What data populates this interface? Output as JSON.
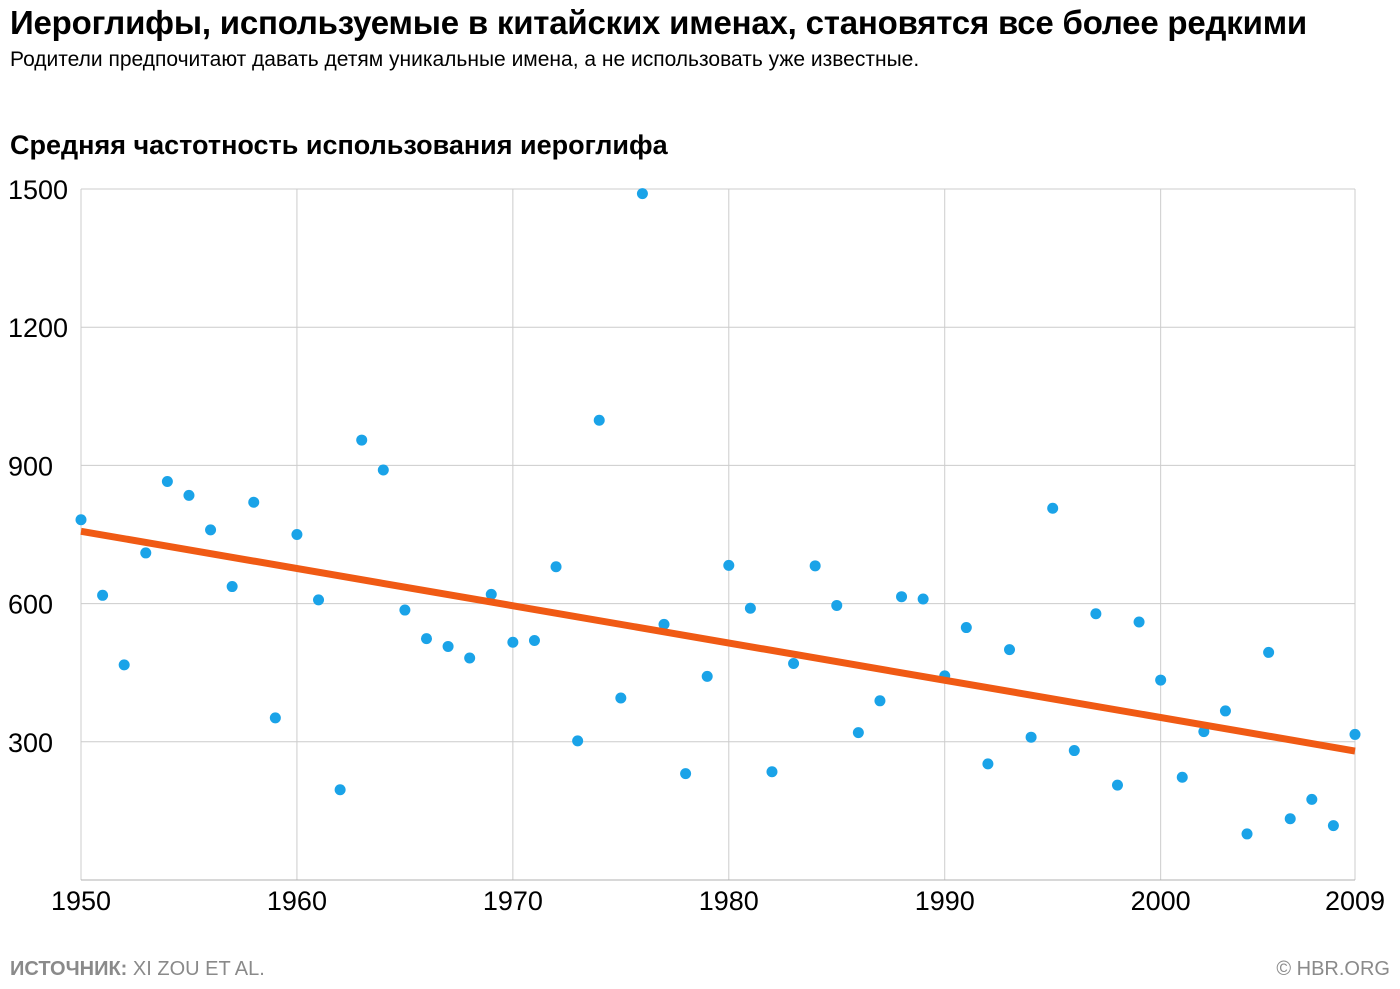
{
  "title": "Иероглифы, используемые в китайских именах, становятся все более редкими",
  "subtitle": "Родители предпочитают давать детям уникальные имена, а не использовать уже известные.",
  "footer": {
    "source_label": "ИСТОЧНИК:",
    "source_text": " XI ZOU ET AL.",
    "copyright": "© HBR.ORG"
  },
  "colors": {
    "points": "#1aa3e8",
    "trend": "#f05a14",
    "grid": "#cccccc"
  },
  "chart_data": {
    "type": "scatter",
    "title": "Средняя частотность использования иероглифа",
    "xlabel": "",
    "ylabel": "",
    "xlim": [
      1950,
      2009
    ],
    "ylim": [
      0,
      1500
    ],
    "x_ticks": [
      1950,
      1960,
      1970,
      1980,
      1990,
      2000,
      2009
    ],
    "y_ticks": [
      300,
      600,
      900,
      1200,
      1500
    ],
    "grid": true,
    "series": [
      {
        "x": [
          1950,
          1951,
          1952,
          1953,
          1954,
          1955,
          1956,
          1957,
          1958,
          1959,
          1960,
          1961,
          1962,
          1963,
          1964,
          1965,
          1966,
          1967,
          1968,
          1969,
          1970,
          1971,
          1972,
          1973,
          1974,
          1975,
          1976,
          1977,
          1978,
          1979,
          1980,
          1981,
          1982,
          1983,
          1984,
          1985,
          1986,
          1987,
          1988,
          1989,
          1990,
          1991,
          1992,
          1993,
          1994,
          1995,
          1996,
          1997,
          1998,
          1999,
          2000,
          2001,
          2002,
          2003,
          2004,
          2005,
          2006,
          2007,
          2008,
          2009
        ],
        "y": [
          782,
          618,
          467,
          710,
          865,
          835,
          760,
          637,
          820,
          352,
          750,
          608,
          196,
          955,
          890,
          586,
          524,
          507,
          482,
          620,
          516,
          520,
          680,
          302,
          998,
          395,
          1490,
          555,
          231,
          442,
          683,
          590,
          235,
          470,
          682,
          596,
          320,
          389,
          615,
          610,
          443,
          548,
          252,
          500,
          310,
          807,
          281,
          578,
          206,
          560,
          434,
          223,
          322,
          367,
          100,
          494,
          133,
          175,
          118,
          316
        ]
      }
    ],
    "trend": {
      "type": "linear",
      "x": [
        1950,
        2009
      ],
      "y": [
        757,
        280
      ]
    }
  }
}
